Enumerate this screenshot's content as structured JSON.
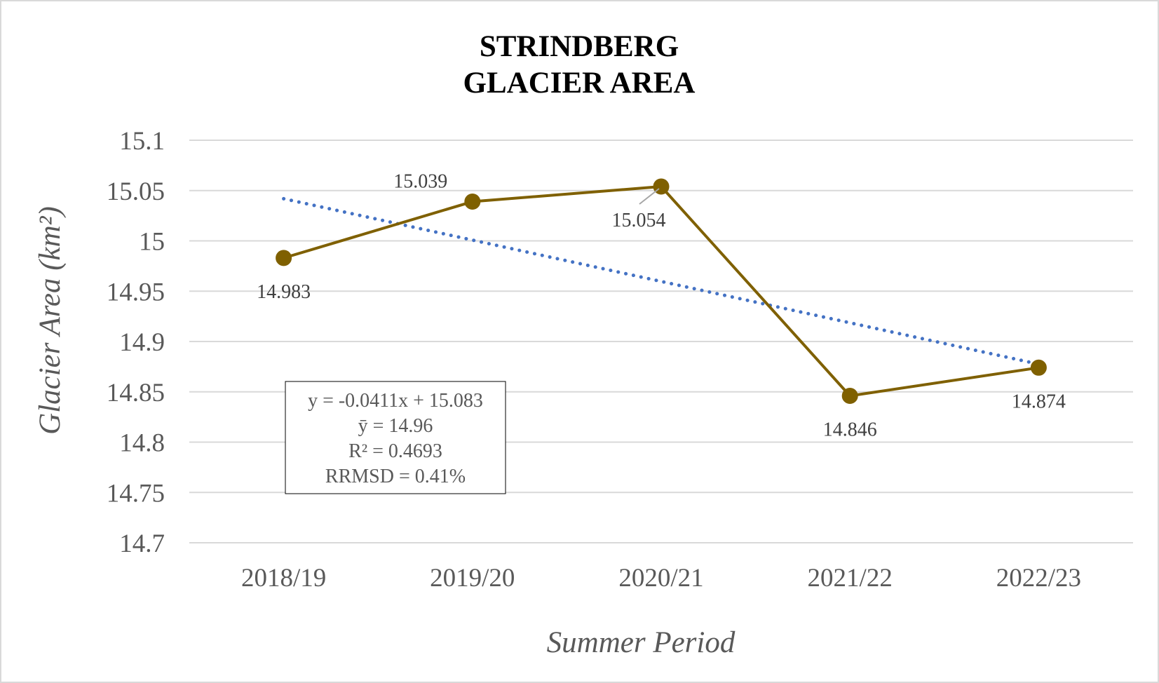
{
  "chart_data": {
    "type": "line",
    "title": [
      "STRINDBERG",
      "GLACIER AREA"
    ],
    "xlabel": "Summer Period",
    "ylabel": "Glacier Area (km²)",
    "categories": [
      "2018/19",
      "2019/20",
      "2020/21",
      "2021/22",
      "2022/23"
    ],
    "series": [
      {
        "values": [
          14.983,
          15.039,
          15.054,
          14.846,
          14.874
        ],
        "color": "#7f6000",
        "data_labels": [
          "14.983",
          "15.039",
          "15.054",
          "14.846",
          "14.874"
        ]
      }
    ],
    "trendline": {
      "type": "linear",
      "style": "dotted",
      "color": "#4472c4",
      "slope": -0.0411,
      "intercept": 15.083
    },
    "ylim": [
      14.7,
      15.1
    ],
    "yticks": [
      "15.1",
      "15.05",
      "15",
      "14.95",
      "14.9",
      "14.85",
      "14.8",
      "14.75",
      "14.7"
    ],
    "grid": true,
    "stats_box": [
      "y = -0.0411x + 15.083",
      "ȳ = 14.96",
      "R² = 0.4693",
      "RRMSD = 0.41%"
    ]
  }
}
